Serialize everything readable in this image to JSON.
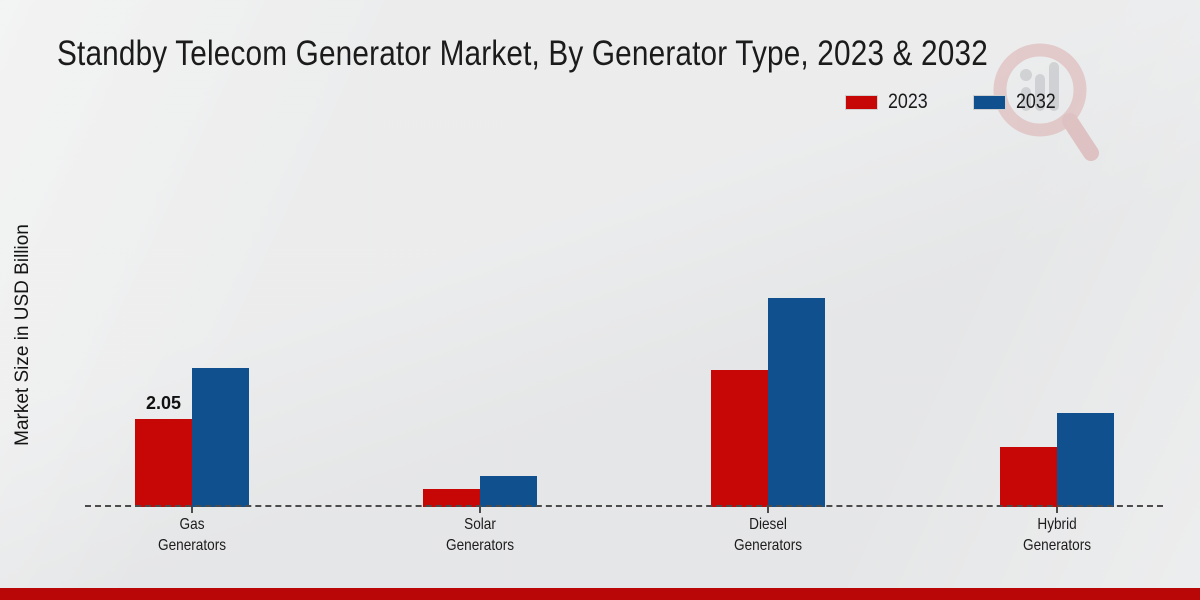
{
  "title": "Standby Telecom Generator Market, By Generator Type, 2023 & 2032",
  "y_axis": {
    "label": "Market Size in USD Billion"
  },
  "legend": {
    "position": "top-right"
  },
  "watermark": {
    "icon": "magnifier-bar-chart-logo"
  },
  "footer": {
    "accent_color": "#b90606"
  },
  "colors": {
    "series_2023": "#c70606",
    "series_2032": "#11508e",
    "background": "#e9eaeb",
    "baseline": "#4b4b4b"
  },
  "chart_data": {
    "type": "bar",
    "title": "Standby Telecom Generator Market, By Generator Type, 2023 & 2032",
    "categories": [
      "Gas Generators",
      "Solar Generators",
      "Diesel Generators",
      "Hybrid Generators"
    ],
    "series": [
      {
        "name": "2023",
        "color": "#c70606",
        "values": [
          2.05,
          0.4,
          3.2,
          1.4
        ]
      },
      {
        "name": "2032",
        "color": "#11508e",
        "values": [
          3.25,
          0.7,
          4.9,
          2.2
        ]
      }
    ],
    "data_labels": [
      {
        "series": "2023",
        "category": "Gas Generators",
        "text": "2.05"
      }
    ],
    "xlabel": "",
    "ylabel": "Market Size in USD Billion",
    "ylim": [
      0,
      5.5
    ],
    "grid": false,
    "y_axis_ticks_visible": false,
    "legend_position": "top-right",
    "baseline_style": "dashed"
  }
}
